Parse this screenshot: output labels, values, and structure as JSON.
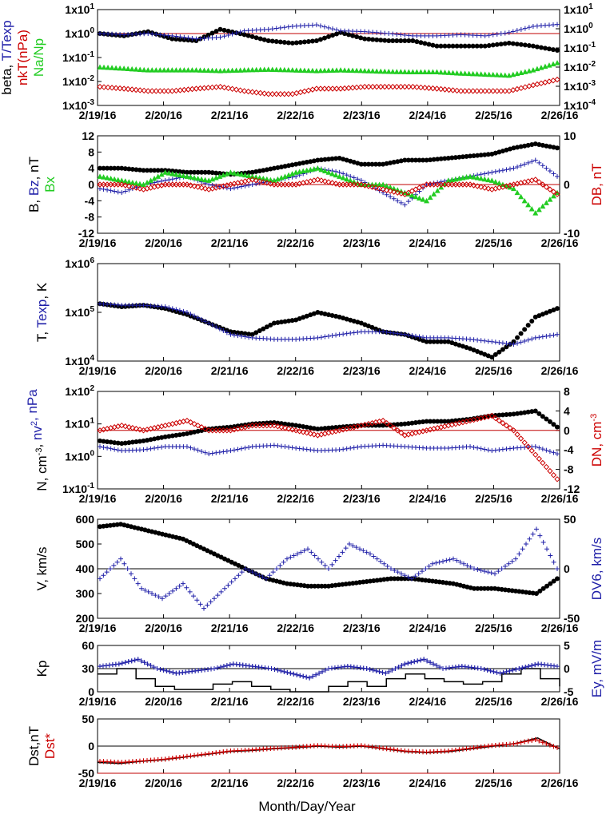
{
  "x_axis": {
    "title": "Month/Day/Year",
    "tick_labels": [
      "2/19/16",
      "2/20/16",
      "2/21/16",
      "2/22/16",
      "2/23/16",
      "2/24/16",
      "2/25/16",
      "2/26/16"
    ]
  },
  "colors": {
    "black": "#000000",
    "blue": "#1f1fa8",
    "red": "#cc0000",
    "green": "#22cc22"
  },
  "chart_data": [
    {
      "type": "scatter",
      "panel": "beta",
      "left_label": [
        {
          "text": "beta, ",
          "color": "#000000"
        },
        {
          "text": "T/Texp",
          "color": "#1f1fa8"
        }
      ],
      "left_label2": [
        {
          "text": "nkT(nPa)",
          "color": "#cc0000"
        }
      ],
      "left_label3": [
        {
          "text": "Na/Np",
          "color": "#22cc22"
        }
      ],
      "y_tick_labels": [
        "1x10-3",
        "1x10-2",
        "1x10-1",
        "1x100",
        "1x101"
      ],
      "right_tick_labels": [
        "1x10-4",
        "1x10-3",
        "1x10-2",
        "1x10-1",
        "1x100",
        "1x101"
      ],
      "y_scale": "log",
      "reference_line": 1,
      "series": [
        {
          "name": "beta",
          "marker": "dot",
          "color": "#000000",
          "values": [
            1.0,
            0.8,
            1.2,
            0.6,
            0.5,
            1.5,
            0.9,
            0.5,
            0.4,
            0.5,
            1.1,
            0.6,
            0.5,
            0.5,
            0.3,
            0.3,
            0.3,
            0.4,
            0.3,
            0.2
          ]
        },
        {
          "name": "T/Texp",
          "marker": "plus",
          "color": "#1f1fa8",
          "values": [
            1.0,
            0.9,
            1.0,
            0.8,
            0.6,
            0.7,
            1.3,
            1.5,
            2.0,
            2.3,
            1.3,
            1.2,
            1.0,
            0.8,
            0.8,
            0.9,
            0.8,
            1.1,
            2.0,
            2.4
          ]
        },
        {
          "name": "Na/Np",
          "marker": "triangle",
          "color": "#22cc22",
          "values": [
            0.04,
            0.035,
            0.03,
            0.03,
            0.03,
            0.028,
            0.03,
            0.032,
            0.03,
            0.028,
            0.03,
            0.028,
            0.026,
            0.025,
            0.025,
            0.022,
            0.02,
            0.018,
            0.03,
            0.06
          ]
        },
        {
          "name": "nkT",
          "marker": "diamond",
          "color": "#cc0000",
          "values": [
            0.006,
            0.005,
            0.004,
            0.004,
            0.005,
            0.006,
            0.004,
            0.003,
            0.003,
            0.005,
            0.005,
            0.006,
            0.006,
            0.006,
            0.005,
            0.004,
            0.004,
            0.004,
            0.007,
            0.012
          ]
        }
      ]
    },
    {
      "type": "scatter",
      "panel": "field",
      "left_label": [
        {
          "text": "B, ",
          "color": "#000000"
        },
        {
          "text": "Bz",
          "color": "#1f1fa8"
        },
        {
          "text": ", nT",
          "color": "#000000"
        }
      ],
      "left_label2": [
        {
          "text": "Bx",
          "color": "#22cc22"
        }
      ],
      "right_label": [
        {
          "text": "DB, nT",
          "color": "#cc0000"
        }
      ],
      "y_tick_labels": [
        "-12",
        "-8",
        "-4",
        "0",
        "4",
        "8",
        "12"
      ],
      "right_tick_labels": [
        "-10",
        "0",
        "10"
      ],
      "ylim": [
        -12,
        12
      ],
      "reference_line": 0,
      "series": [
        {
          "name": "B",
          "marker": "dot",
          "color": "#000000",
          "values": [
            4,
            4,
            3.5,
            3.5,
            3,
            3,
            2.5,
            3,
            4,
            5,
            6,
            6.5,
            5,
            5,
            6,
            6,
            6.5,
            7,
            7.5,
            9,
            10,
            9
          ]
        },
        {
          "name": "Bz",
          "marker": "plus",
          "color": "#1f1fa8",
          "values": [
            -1,
            -2,
            0,
            1,
            2,
            0,
            -1,
            0,
            1,
            2,
            4,
            3,
            1,
            -2,
            -5,
            0,
            1,
            2,
            3,
            4,
            6,
            2
          ]
        },
        {
          "name": "Bx",
          "marker": "triangle",
          "color": "#22cc22",
          "values": [
            2,
            1,
            0,
            3,
            2,
            1,
            3,
            2,
            1,
            3,
            4,
            2,
            0,
            0,
            -2,
            -4,
            1,
            2,
            1,
            -1,
            -7,
            -2
          ]
        },
        {
          "name": "DB",
          "marker": "diamond",
          "color": "#cc0000",
          "values": [
            0,
            0,
            -1,
            0,
            0,
            -1,
            0,
            1,
            0,
            0,
            1,
            0,
            0,
            -1,
            -2,
            0,
            0,
            0,
            -1,
            0,
            1,
            -2
          ]
        }
      ]
    },
    {
      "type": "scatter",
      "panel": "temperature",
      "left_label": [
        {
          "text": "T, ",
          "color": "#000000"
        },
        {
          "text": "Texp",
          "color": "#1f1fa8"
        },
        {
          "text": ", K",
          "color": "#000000"
        }
      ],
      "y_tick_labels": [
        "1x104",
        "1x105",
        "1x106"
      ],
      "y_scale": "log",
      "series": [
        {
          "name": "T",
          "marker": "dot",
          "color": "#000000",
          "values": [
            150000,
            130000,
            140000,
            120000,
            90000,
            60000,
            40000,
            35000,
            60000,
            70000,
            100000,
            80000,
            60000,
            40000,
            35000,
            25000,
            25000,
            18000,
            12000,
            25000,
            80000,
            120000
          ]
        },
        {
          "name": "Texp",
          "marker": "plus",
          "color": "#1f1fa8",
          "values": [
            150000,
            140000,
            140000,
            130000,
            100000,
            60000,
            35000,
            30000,
            28000,
            28000,
            30000,
            35000,
            40000,
            40000,
            35000,
            30000,
            30000,
            28000,
            25000,
            22000,
            30000,
            35000
          ]
        }
      ]
    },
    {
      "type": "scatter",
      "panel": "density",
      "left_label": [
        {
          "text": "N, cm",
          "color": "#000000"
        },
        {
          "text": "-3",
          "color": "#000000",
          "sup": true
        },
        {
          "text": ", ",
          "color": "#000000"
        },
        {
          "text": "nv",
          "color": "#1f1fa8"
        },
        {
          "text": "2",
          "color": "#1f1fa8",
          "sup": true
        },
        {
          "text": ", nPa",
          "color": "#1f1fa8"
        }
      ],
      "right_label": [
        {
          "text": "DN, cm",
          "color": "#cc0000"
        },
        {
          "text": "-3",
          "color": "#cc0000",
          "sup": true
        }
      ],
      "y_tick_labels": [
        "1x10-1",
        "1x100",
        "1x101",
        "1x102"
      ],
      "right_tick_labels": [
        "-12",
        "-8",
        "-4",
        "0",
        "4",
        "8"
      ],
      "y_scale": "log",
      "series": [
        {
          "name": "N",
          "marker": "dot",
          "color": "#000000",
          "values": [
            3,
            2.5,
            3,
            4,
            5,
            7,
            8,
            10,
            11,
            9,
            7,
            8,
            9,
            9,
            10,
            12,
            12,
            14,
            18,
            20,
            25,
            8
          ]
        },
        {
          "name": "nv2",
          "marker": "plus",
          "color": "#1f1fa8",
          "values": [
            2,
            1.5,
            1.6,
            2,
            2,
            1.2,
            1.5,
            2,
            2.2,
            1.8,
            1.5,
            1.6,
            2,
            2.2,
            2,
            1.8,
            1.8,
            2,
            1.5,
            1.8,
            2,
            1.2
          ]
        },
        {
          "name": "DN",
          "marker": "diamond",
          "color": "#cc0000",
          "values": [
            0,
            1,
            0,
            1,
            2,
            0,
            0,
            1,
            1,
            0,
            -1,
            0,
            1,
            2,
            -1,
            0,
            1,
            2,
            3,
            0,
            -5,
            -10
          ]
        }
      ]
    },
    {
      "type": "scatter",
      "panel": "velocity",
      "left_label": [
        {
          "text": "V, km/s",
          "color": "#000000"
        }
      ],
      "right_label": [
        {
          "text": "DV6, km/s",
          "color": "#1f1fa8"
        }
      ],
      "y_tick_labels": [
        "200",
        "300",
        "400",
        "500",
        "600"
      ],
      "right_tick_labels": [
        "-50",
        "0",
        "50"
      ],
      "ylim": [
        200,
        600
      ],
      "series": [
        {
          "name": "V",
          "marker": "dot",
          "color": "#000000",
          "values": [
            570,
            580,
            560,
            540,
            520,
            480,
            440,
            400,
            360,
            340,
            330,
            330,
            340,
            350,
            360,
            360,
            350,
            340,
            320,
            320,
            310,
            300,
            360
          ]
        },
        {
          "name": "DV6",
          "marker": "plus",
          "color": "#1f1fa8",
          "values": [
            -10,
            10,
            -20,
            -30,
            -15,
            -40,
            -20,
            0,
            -10,
            10,
            20,
            0,
            25,
            15,
            0,
            -10,
            5,
            10,
            0,
            -5,
            10,
            40,
            0
          ]
        }
      ]
    },
    {
      "type": "line",
      "panel": "kp",
      "left_label": [
        {
          "text": "Kp",
          "color": "#000000"
        }
      ],
      "right_label": [
        {
          "text": "Ey,  mV/m",
          "color": "#1f1fa8"
        }
      ],
      "y_tick_labels": [
        "0",
        "30",
        "60"
      ],
      "right_tick_labels": [
        "-5",
        "0",
        "5"
      ],
      "ylim": [
        0,
        60
      ],
      "series": [
        {
          "name": "Kp",
          "marker": "step",
          "color": "#000000",
          "values": [
            23,
            30,
            17,
            7,
            3,
            3,
            10,
            13,
            7,
            3,
            0,
            0,
            7,
            13,
            7,
            17,
            23,
            17,
            13,
            10,
            13,
            23,
            30,
            17,
            7
          ]
        },
        {
          "name": "Ey",
          "marker": "plus",
          "color": "#1f1fa8",
          "values": [
            0.5,
            1,
            2,
            0,
            -1,
            -0.5,
            0,
            1,
            0.5,
            0,
            -1,
            -2,
            0,
            0.5,
            0,
            -1,
            1,
            2,
            0,
            0.5,
            0,
            -1,
            0,
            1,
            0.5
          ]
        }
      ]
    },
    {
      "type": "line",
      "panel": "dst",
      "left_label": [
        {
          "text": "Dst,nT",
          "color": "#000000"
        }
      ],
      "left_label2": [
        {
          "text": "Dst*",
          "color": "#cc0000"
        }
      ],
      "y_tick_labels": [
        "-50",
        "0",
        "50"
      ],
      "ylim": [
        -50,
        50
      ],
      "series": [
        {
          "name": "Dst",
          "marker": "line",
          "color": "#000000",
          "values": [
            -30,
            -32,
            -28,
            -25,
            -20,
            -15,
            -10,
            -8,
            -5,
            -3,
            0,
            -2,
            0,
            -5,
            -10,
            -12,
            -10,
            -5,
            0,
            5,
            15,
            -5
          ]
        },
        {
          "name": "Dst*",
          "marker": "plus",
          "color": "#cc0000",
          "values": [
            -28,
            -30,
            -27,
            -24,
            -19,
            -14,
            -9,
            -7,
            -4,
            -2,
            1,
            -1,
            1,
            -4,
            -9,
            -11,
            -9,
            -4,
            1,
            4,
            12,
            -3
          ]
        }
      ]
    }
  ]
}
